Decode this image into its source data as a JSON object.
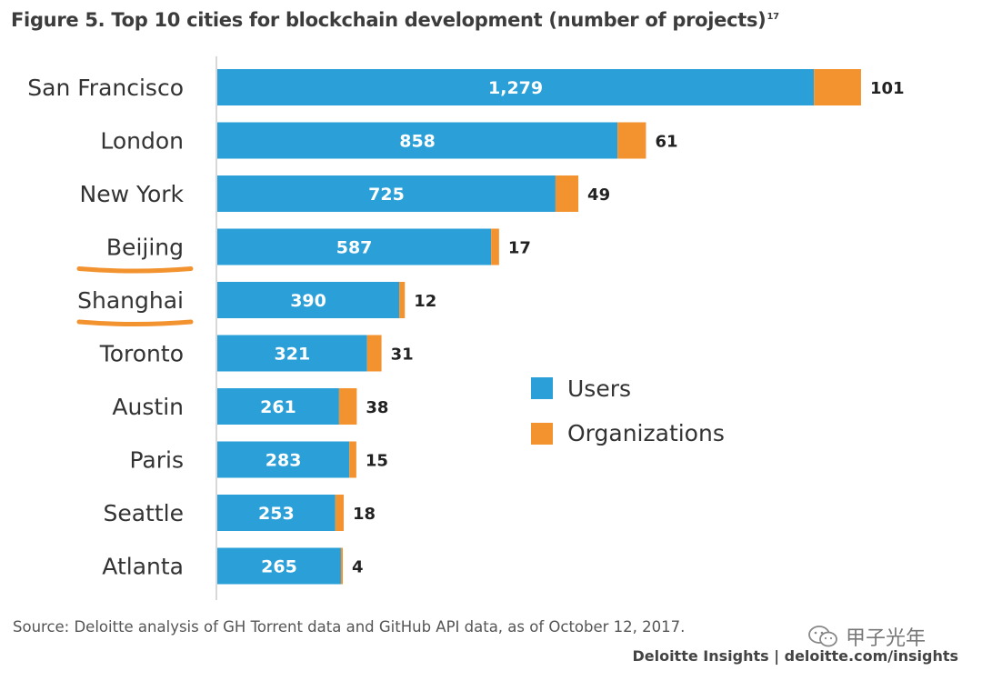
{
  "title": "Figure 5. Top 10 cities for blockchain development (number of projects)",
  "title_superscript": "17",
  "source": "Source: Deloitte analysis of GH Torrent data and GitHub API data, as of October 12, 2017.",
  "brand": "Deloitte Insights | deloitte.com/insights",
  "watermark": "甲子光年",
  "colors": {
    "users": "#2a9fd8",
    "organizations": "#f2932f",
    "highlight": "#f2932f",
    "axis": "#cccccc"
  },
  "chart_data": {
    "type": "bar",
    "orientation": "horizontal",
    "stacked": true,
    "categories": [
      "San Francisco",
      "London",
      "New York",
      "Beijing",
      "Shanghai",
      "Toronto",
      "Austin",
      "Paris",
      "Seattle",
      "Atlanta"
    ],
    "series": [
      {
        "name": "Users",
        "values": [
          1279,
          858,
          725,
          587,
          390,
          321,
          261,
          283,
          253,
          265
        ],
        "labels": [
          "1,279",
          "858",
          "725",
          "587",
          "390",
          "321",
          "261",
          "283",
          "253",
          "265"
        ]
      },
      {
        "name": "Organizations",
        "values": [
          101,
          61,
          49,
          17,
          12,
          31,
          38,
          15,
          18,
          4
        ],
        "labels": [
          "101",
          "61",
          "49",
          "17",
          "12",
          "31",
          "38",
          "15",
          "18",
          "4"
        ]
      }
    ],
    "highlighted_categories": [
      "Beijing",
      "Shanghai"
    ],
    "legend_position": "right",
    "grid": false
  }
}
